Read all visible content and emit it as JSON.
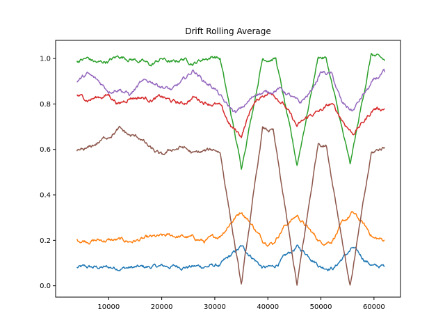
{
  "chart_data": {
    "type": "line",
    "title": "Drift Rolling Average",
    "xlabel": "",
    "ylabel": "",
    "xlim": [
      0,
      65000
    ],
    "ylim": [
      -0.05,
      1.08
    ],
    "xticks": [
      10000,
      20000,
      30000,
      40000,
      50000,
      60000
    ],
    "yticks": [
      0.0,
      0.2,
      0.4,
      0.6,
      0.8,
      1.0
    ],
    "grid": false,
    "legend": "none",
    "series": [
      {
        "color": "#1f77b4",
        "points": [
          [
            4000,
            0.08
          ],
          [
            8000,
            0.08
          ],
          [
            12000,
            0.08
          ],
          [
            16000,
            0.08
          ],
          [
            20000,
            0.085
          ],
          [
            24000,
            0.085
          ],
          [
            28000,
            0.085
          ],
          [
            31000,
            0.09
          ],
          [
            33000,
            0.13
          ],
          [
            35000,
            0.17
          ],
          [
            37000,
            0.13
          ],
          [
            39000,
            0.08
          ],
          [
            41000,
            0.08
          ],
          [
            43000,
            0.12
          ],
          [
            45500,
            0.17
          ],
          [
            48000,
            0.13
          ],
          [
            50000,
            0.085
          ],
          [
            52500,
            0.08
          ],
          [
            54000,
            0.12
          ],
          [
            56000,
            0.165
          ],
          [
            58000,
            0.12
          ],
          [
            60000,
            0.085
          ],
          [
            62000,
            0.085
          ]
        ]
      },
      {
        "color": "#ff7f0e",
        "points": [
          [
            4000,
            0.2
          ],
          [
            8000,
            0.2
          ],
          [
            12000,
            0.2
          ],
          [
            14000,
            0.195
          ],
          [
            18000,
            0.21
          ],
          [
            22000,
            0.22
          ],
          [
            26000,
            0.21
          ],
          [
            28000,
            0.195
          ],
          [
            31000,
            0.22
          ],
          [
            33000,
            0.28
          ],
          [
            35000,
            0.33
          ],
          [
            37000,
            0.27
          ],
          [
            39000,
            0.2
          ],
          [
            41000,
            0.19
          ],
          [
            43000,
            0.26
          ],
          [
            45500,
            0.31
          ],
          [
            48000,
            0.24
          ],
          [
            50000,
            0.19
          ],
          [
            52000,
            0.2
          ],
          [
            54000,
            0.27
          ],
          [
            56000,
            0.32
          ],
          [
            58000,
            0.27
          ],
          [
            60000,
            0.21
          ],
          [
            62000,
            0.2
          ]
        ]
      },
      {
        "color": "#2ca02c",
        "points": [
          [
            4000,
            0.99
          ],
          [
            6000,
            1.0
          ],
          [
            8000,
            0.98
          ],
          [
            10000,
            0.99
          ],
          [
            12000,
            1.01
          ],
          [
            14000,
            1.0
          ],
          [
            16000,
            0.99
          ],
          [
            18000,
            0.97
          ],
          [
            20000,
            1.0
          ],
          [
            22000,
            0.98
          ],
          [
            24000,
            1.0
          ],
          [
            26000,
            0.98
          ],
          [
            28000,
            1.0
          ],
          [
            30000,
            1.01
          ],
          [
            31000,
            1.0
          ],
          [
            35000,
            0.52
          ],
          [
            39000,
            1.0
          ],
          [
            41500,
            1.0
          ],
          [
            45500,
            0.53
          ],
          [
            49500,
            1.01
          ],
          [
            51000,
            1.0
          ],
          [
            55500,
            0.53
          ],
          [
            59500,
            1.02
          ],
          [
            61000,
            1.0
          ],
          [
            62000,
            0.99
          ]
        ]
      },
      {
        "color": "#d62728",
        "points": [
          [
            4000,
            0.84
          ],
          [
            6000,
            0.82
          ],
          [
            8000,
            0.83
          ],
          [
            10000,
            0.84
          ],
          [
            12000,
            0.8
          ],
          [
            14000,
            0.83
          ],
          [
            16000,
            0.83
          ],
          [
            18000,
            0.82
          ],
          [
            20000,
            0.83
          ],
          [
            22000,
            0.81
          ],
          [
            24000,
            0.8
          ],
          [
            26000,
            0.83
          ],
          [
            28000,
            0.81
          ],
          [
            30000,
            0.8
          ],
          [
            31000,
            0.79
          ],
          [
            33000,
            0.7
          ],
          [
            35000,
            0.66
          ],
          [
            37000,
            0.79
          ],
          [
            39000,
            0.84
          ],
          [
            41000,
            0.85
          ],
          [
            43000,
            0.8
          ],
          [
            45500,
            0.7
          ],
          [
            48000,
            0.75
          ],
          [
            50000,
            0.77
          ],
          [
            52000,
            0.8
          ],
          [
            54000,
            0.73
          ],
          [
            56000,
            0.67
          ],
          [
            58000,
            0.72
          ],
          [
            60000,
            0.78
          ],
          [
            62000,
            0.78
          ]
        ]
      },
      {
        "color": "#9467bd",
        "points": [
          [
            4000,
            0.9
          ],
          [
            6000,
            0.93
          ],
          [
            8000,
            0.9
          ],
          [
            10000,
            0.86
          ],
          [
            12000,
            0.87
          ],
          [
            14000,
            0.84
          ],
          [
            16000,
            0.89
          ],
          [
            18000,
            0.9
          ],
          [
            20000,
            0.88
          ],
          [
            22000,
            0.86
          ],
          [
            24000,
            0.9
          ],
          [
            26000,
            0.95
          ],
          [
            28000,
            0.9
          ],
          [
            30000,
            0.87
          ],
          [
            32000,
            0.8
          ],
          [
            34000,
            0.76
          ],
          [
            36000,
            0.8
          ],
          [
            38000,
            0.85
          ],
          [
            40000,
            0.85
          ],
          [
            42000,
            0.87
          ],
          [
            44000,
            0.84
          ],
          [
            46000,
            0.8
          ],
          [
            48000,
            0.85
          ],
          [
            50000,
            0.94
          ],
          [
            52000,
            0.93
          ],
          [
            54000,
            0.8
          ],
          [
            56000,
            0.77
          ],
          [
            58000,
            0.84
          ],
          [
            60000,
            0.9
          ],
          [
            62000,
            0.94
          ]
        ]
      },
      {
        "color": "#8c564b",
        "points": [
          [
            4000,
            0.59
          ],
          [
            6000,
            0.6
          ],
          [
            8000,
            0.63
          ],
          [
            10000,
            0.66
          ],
          [
            12000,
            0.69
          ],
          [
            14000,
            0.66
          ],
          [
            16000,
            0.65
          ],
          [
            18000,
            0.6
          ],
          [
            20000,
            0.57
          ],
          [
            22000,
            0.6
          ],
          [
            24000,
            0.61
          ],
          [
            26000,
            0.58
          ],
          [
            28000,
            0.59
          ],
          [
            30000,
            0.6
          ],
          [
            31000,
            0.59
          ],
          [
            35000,
            0.0
          ],
          [
            39000,
            0.69
          ],
          [
            41000,
            0.68
          ],
          [
            45500,
            0.0
          ],
          [
            49500,
            0.63
          ],
          [
            51000,
            0.62
          ],
          [
            55500,
            0.0
          ],
          [
            59500,
            0.58
          ],
          [
            61000,
            0.6
          ],
          [
            62000,
            0.61
          ]
        ]
      }
    ]
  }
}
